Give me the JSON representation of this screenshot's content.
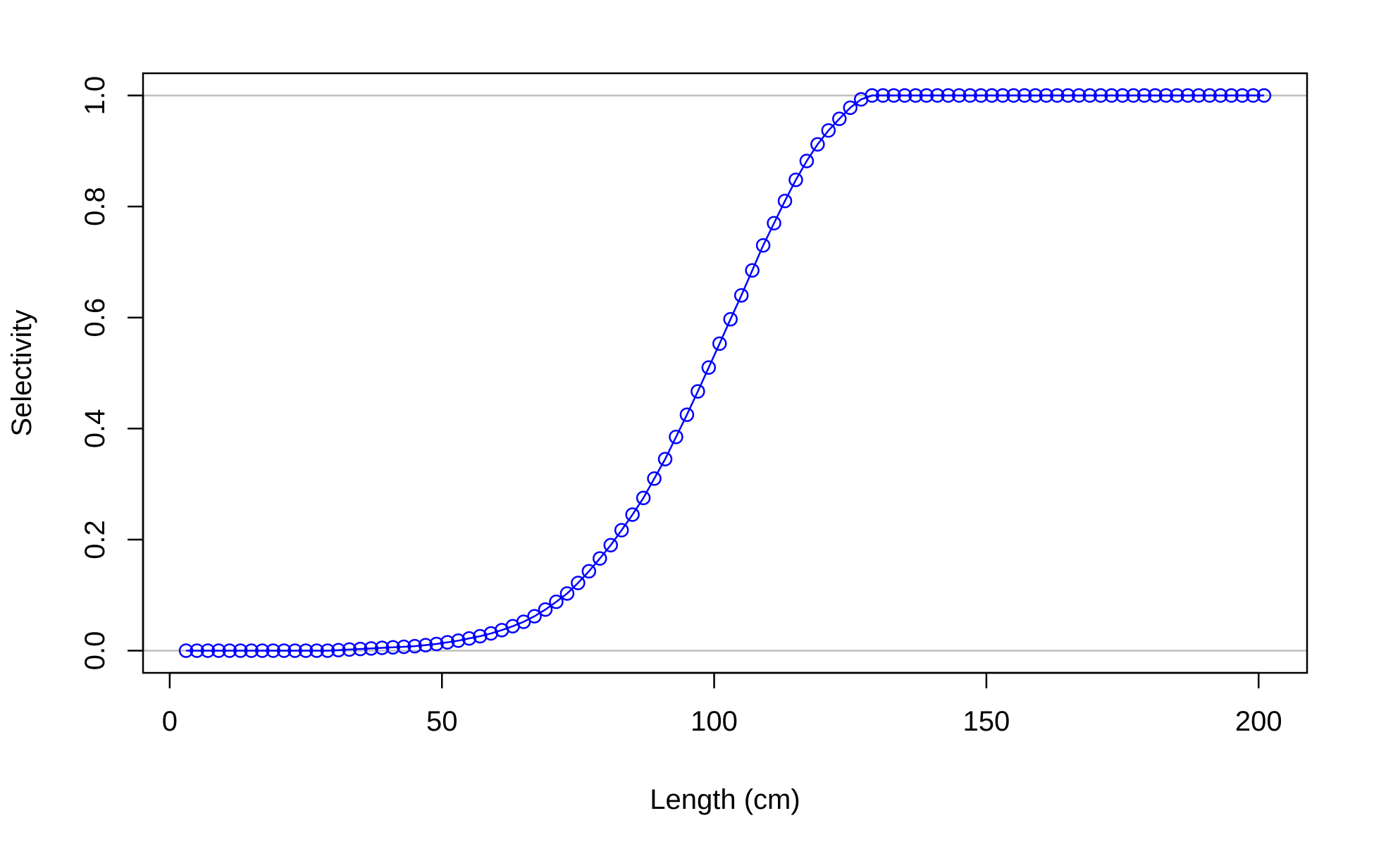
{
  "chart_data": {
    "type": "line",
    "title": "",
    "xlabel": "Length (cm)",
    "ylabel": "Selectivity",
    "xlim": [
      -4.9,
      208.9
    ],
    "ylim": [
      -0.04,
      1.04
    ],
    "x_ticks": [
      0,
      50,
      100,
      150,
      200
    ],
    "x_tick_labels": [
      "0",
      "50",
      "100",
      "150",
      "200"
    ],
    "y_ticks": [
      0.0,
      0.2,
      0.4,
      0.6,
      0.8,
      1.0
    ],
    "y_tick_labels": [
      "0.0",
      "0.2",
      "0.4",
      "0.6",
      "0.8",
      "1.0"
    ],
    "reference_lines": [
      0,
      1
    ],
    "colors": {
      "series": "#0000ff",
      "reference": "#bebebe",
      "axis": "#000000"
    },
    "grid": false,
    "legend": "none",
    "series": [
      {
        "marker": "open-circle",
        "line": true,
        "x": [
          3,
          5,
          7,
          9,
          11,
          13,
          15,
          17,
          19,
          21,
          23,
          25,
          27,
          29,
          31,
          33,
          35,
          37,
          39,
          41,
          43,
          45,
          47,
          49,
          51,
          53,
          55,
          57,
          59,
          61,
          63,
          65,
          67,
          69,
          71,
          73,
          75,
          77,
          79,
          81,
          83,
          85,
          87,
          89,
          91,
          93,
          95,
          97,
          99,
          101,
          103,
          105,
          107,
          109,
          111,
          113,
          115,
          117,
          119,
          121,
          123,
          125,
          127,
          129,
          131,
          133,
          135,
          137,
          139,
          141,
          143,
          145,
          147,
          149,
          151,
          153,
          155,
          157,
          159,
          161,
          163,
          165,
          167,
          169,
          171,
          173,
          175,
          177,
          179,
          181,
          183,
          185,
          187,
          189,
          191,
          193,
          195,
          197,
          199,
          201
        ],
        "y": [
          0.0,
          0.0,
          0.0,
          0.0,
          0.0,
          0.0,
          0.0,
          0.0,
          0.0,
          0.0,
          0.0,
          0.0,
          0.0,
          0.0,
          0.001,
          0.002,
          0.003,
          0.004,
          0.005,
          0.006,
          0.007,
          0.008,
          0.01,
          0.012,
          0.015,
          0.018,
          0.022,
          0.026,
          0.031,
          0.037,
          0.044,
          0.052,
          0.062,
          0.074,
          0.088,
          0.103,
          0.122,
          0.143,
          0.166,
          0.19,
          0.217,
          0.245,
          0.275,
          0.31,
          0.345,
          0.385,
          0.425,
          0.467,
          0.51,
          0.553,
          0.597,
          0.64,
          0.685,
          0.73,
          0.77,
          0.81,
          0.848,
          0.882,
          0.912,
          0.937,
          0.958,
          0.978,
          0.993,
          1.0,
          1.0,
          1.0,
          1.0,
          1.0,
          1.0,
          1.0,
          1.0,
          1.0,
          1.0,
          1.0,
          1.0,
          1.0,
          1.0,
          1.0,
          1.0,
          1.0,
          1.0,
          1.0,
          1.0,
          1.0,
          1.0,
          1.0,
          1.0,
          1.0,
          1.0,
          1.0,
          1.0,
          1.0,
          1.0,
          1.0,
          1.0,
          1.0,
          1.0,
          1.0,
          1.0,
          1.0
        ]
      }
    ]
  }
}
